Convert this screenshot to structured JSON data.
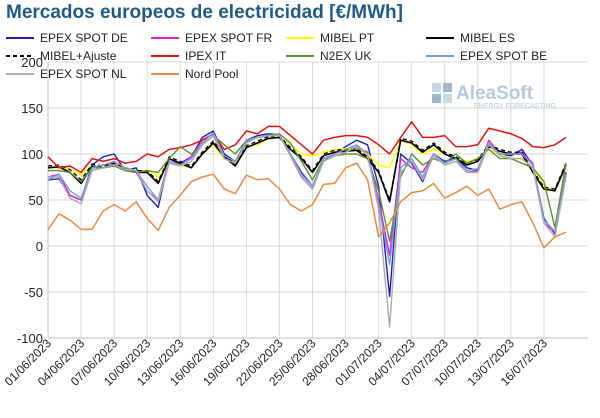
{
  "chart_data": {
    "type": "line",
    "title": "Mercados europeos de electricidad [€/MWh]",
    "watermark": {
      "brand": "AleaSoft",
      "tagline": "ENERGY FORECASTING"
    },
    "ylim": [
      -100,
      200
    ],
    "yticks": [
      -100,
      -50,
      0,
      50,
      100,
      150,
      200
    ],
    "xlim": [
      0,
      49
    ],
    "xticks": [
      {
        "x": 0,
        "label": "01/06/2023"
      },
      {
        "x": 3,
        "label": "04/06/2023"
      },
      {
        "x": 6,
        "label": "07/06/2023"
      },
      {
        "x": 9,
        "label": "10/06/2023"
      },
      {
        "x": 12,
        "label": "13/06/2023"
      },
      {
        "x": 15,
        "label": "16/06/2023"
      },
      {
        "x": 18,
        "label": "19/06/2023"
      },
      {
        "x": 21,
        "label": "22/06/2023"
      },
      {
        "x": 24,
        "label": "25/06/2023"
      },
      {
        "x": 27,
        "label": "28/06/2023"
      },
      {
        "x": 30,
        "label": "01/07/2023"
      },
      {
        "x": 33,
        "label": "04/07/2023"
      },
      {
        "x": 36,
        "label": "07/07/2023"
      },
      {
        "x": 39,
        "label": "10/07/2023"
      },
      {
        "x": 42,
        "label": "13/07/2023"
      },
      {
        "x": 45,
        "label": "16/07/2023"
      }
    ],
    "grid": true,
    "legend_position": "top",
    "series": [
      {
        "name": "EPEX SPOT DE",
        "color": "#1f1fbf",
        "width": 1.4,
        "dash": "",
        "values": [
          72,
          73,
          55,
          50,
          88,
          97,
          100,
          82,
          85,
          55,
          42,
          95,
          90,
          97,
          118,
          125,
          100,
          92,
          115,
          120,
          122,
          121,
          100,
          80,
          65,
          92,
          100,
          108,
          115,
          110,
          65,
          -55,
          100,
          90,
          70,
          100,
          92,
          96,
          85,
          82,
          110,
          100,
          98,
          105,
          88,
          30,
          13,
          80
        ]
      },
      {
        "name": "EPEX SPOT FR",
        "color": "#e020e0",
        "width": 1.4,
        "dash": "",
        "values": [
          75,
          78,
          55,
          50,
          85,
          88,
          90,
          82,
          80,
          60,
          50,
          95,
          88,
          97,
          115,
          122,
          97,
          92,
          113,
          118,
          120,
          121,
          98,
          75,
          62,
          95,
          100,
          105,
          107,
          102,
          50,
          -10,
          95,
          85,
          80,
          100,
          90,
          95,
          80,
          82,
          115,
          100,
          100,
          102,
          90,
          25,
          15,
          78
        ]
      },
      {
        "name": "MIBEL PT",
        "color": "#ffff00",
        "width": 1.6,
        "dash": "",
        "values": [
          85,
          87,
          83,
          78,
          87,
          85,
          88,
          85,
          80,
          83,
          75,
          90,
          88,
          85,
          100,
          110,
          95,
          90,
          108,
          110,
          117,
          118,
          110,
          100,
          98,
          102,
          105,
          106,
          105,
          100,
          88,
          85,
          115,
          110,
          100,
          105,
          100,
          95,
          92,
          95,
          105,
          100,
          95,
          95,
          85,
          65,
          60,
          85
        ]
      },
      {
        "name": "MIBEL ES",
        "color": "#000000",
        "width": 1.6,
        "dash": "",
        "values": [
          85,
          86,
          80,
          68,
          87,
          85,
          88,
          83,
          80,
          80,
          68,
          95,
          90,
          85,
          100,
          112,
          97,
          87,
          107,
          112,
          117,
          118,
          105,
          95,
          80,
          98,
          102,
          103,
          104,
          95,
          80,
          48,
          115,
          112,
          102,
          110,
          100,
          95,
          88,
          92,
          108,
          103,
          100,
          100,
          80,
          62,
          60,
          88
        ]
      },
      {
        "name": "MIBEL+Ajuste",
        "color": "#000000",
        "width": 1.3,
        "dash": "4,3",
        "values": [
          87,
          88,
          83,
          72,
          89,
          87,
          90,
          85,
          82,
          82,
          70,
          97,
          92,
          87,
          102,
          114,
          99,
          89,
          109,
          114,
          119,
          120,
          107,
          97,
          82,
          100,
          104,
          105,
          106,
          97,
          82,
          50,
          117,
          114,
          104,
          112,
          102,
          97,
          90,
          94,
          110,
          105,
          102,
          102,
          82,
          64,
          62,
          90
        ]
      },
      {
        "name": "IPEX IT",
        "color": "#e81010",
        "width": 1.5,
        "dash": "",
        "values": [
          97,
          85,
          87,
          80,
          95,
          92,
          95,
          90,
          92,
          100,
          97,
          105,
          107,
          110,
          115,
          122,
          105,
          110,
          125,
          122,
          130,
          130,
          120,
          110,
          100,
          115,
          118,
          120,
          120,
          118,
          110,
          100,
          118,
          135,
          118,
          118,
          120,
          108,
          108,
          110,
          128,
          125,
          122,
          117,
          108,
          107,
          110,
          118
        ]
      },
      {
        "name": "N2EX UK",
        "color": "#5f8f2f",
        "width": 1.4,
        "dash": "",
        "values": [
          82,
          82,
          80,
          70,
          85,
          85,
          87,
          82,
          80,
          82,
          80,
          95,
          108,
          100,
          110,
          120,
          110,
          100,
          115,
          118,
          120,
          122,
          112,
          92,
          72,
          95,
          98,
          100,
          100,
          95,
          60,
          5,
          75,
          100,
          88,
          95,
          90,
          100,
          90,
          95,
          105,
          95,
          95,
          90,
          85,
          70,
          20,
          90
        ]
      },
      {
        "name": "EPEX SPOT BE",
        "color": "#6f9fdf",
        "width": 1.4,
        "dash": "",
        "values": [
          72,
          78,
          60,
          52,
          85,
          88,
          92,
          85,
          82,
          65,
          50,
          92,
          88,
          95,
          112,
          123,
          98,
          92,
          115,
          118,
          120,
          121,
          100,
          78,
          65,
          95,
          100,
          105,
          110,
          100,
          45,
          -20,
          85,
          95,
          75,
          100,
          90,
          95,
          82,
          84,
          112,
          100,
          100,
          100,
          88,
          28,
          16,
          78
        ]
      },
      {
        "name": "EPEX SPOT NL",
        "color": "#aaaaaa",
        "width": 1.4,
        "dash": "",
        "values": [
          75,
          75,
          52,
          46,
          82,
          85,
          88,
          83,
          82,
          60,
          48,
          90,
          87,
          92,
          110,
          120,
          95,
          90,
          112,
          118,
          120,
          120,
          98,
          76,
          62,
          92,
          98,
          102,
          108,
          100,
          40,
          -88,
          80,
          92,
          72,
          98,
          88,
          92,
          80,
          80,
          110,
          98,
          95,
          95,
          85,
          25,
          10,
          75
        ]
      },
      {
        "name": "Nord Pool",
        "color": "#f0883a",
        "width": 1.5,
        "dash": "",
        "values": [
          18,
          35,
          28,
          18,
          18,
          38,
          45,
          38,
          48,
          30,
          17,
          42,
          55,
          70,
          75,
          78,
          62,
          57,
          77,
          72,
          73,
          62,
          45,
          38,
          45,
          67,
          68,
          85,
          90,
          72,
          10,
          25,
          48,
          58,
          60,
          68,
          52,
          58,
          65,
          55,
          62,
          40,
          45,
          48,
          25,
          -2,
          10,
          15
        ]
      }
    ]
  }
}
